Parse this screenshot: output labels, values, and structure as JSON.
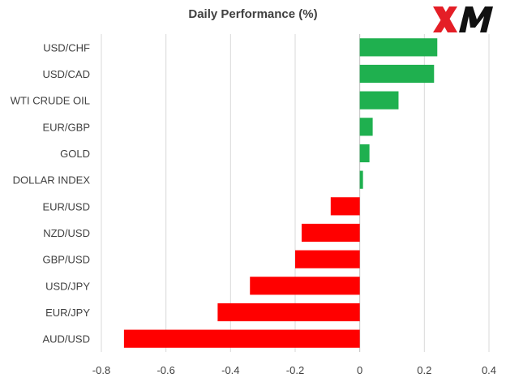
{
  "brand": {
    "name": "XM",
    "colors": {
      "x": "#e41e26",
      "m": "#111111"
    }
  },
  "chart_data": {
    "type": "bar",
    "orientation": "horizontal",
    "title": "Daily Performance (%)",
    "categories": [
      "USD/CHF",
      "USD/CAD",
      "WTI CRUDE OIL",
      "EUR/GBP",
      "GOLD",
      "DOLLAR INDEX",
      "EUR/USD",
      "NZD/USD",
      "GBP/USD",
      "USD/JPY",
      "EUR/JPY",
      "AUD/USD"
    ],
    "values": [
      0.24,
      0.23,
      0.12,
      0.04,
      0.03,
      0.01,
      -0.09,
      -0.18,
      -0.2,
      -0.34,
      -0.44,
      -0.73
    ],
    "xlim": [
      -0.8,
      0.4
    ],
    "xticks": [
      -0.8,
      -0.6,
      -0.4,
      -0.2,
      0,
      0.2,
      0.4
    ],
    "xtick_labels": [
      "-0.8",
      "-0.6",
      "-0.4",
      "-0.2",
      "0",
      "0.2",
      "0.4"
    ],
    "gridlines": "vertical",
    "colors": {
      "positive": "#1fb04f",
      "negative": "#ff0000",
      "grid": "#d9d9d9",
      "axis": "#bfbfbf"
    }
  }
}
